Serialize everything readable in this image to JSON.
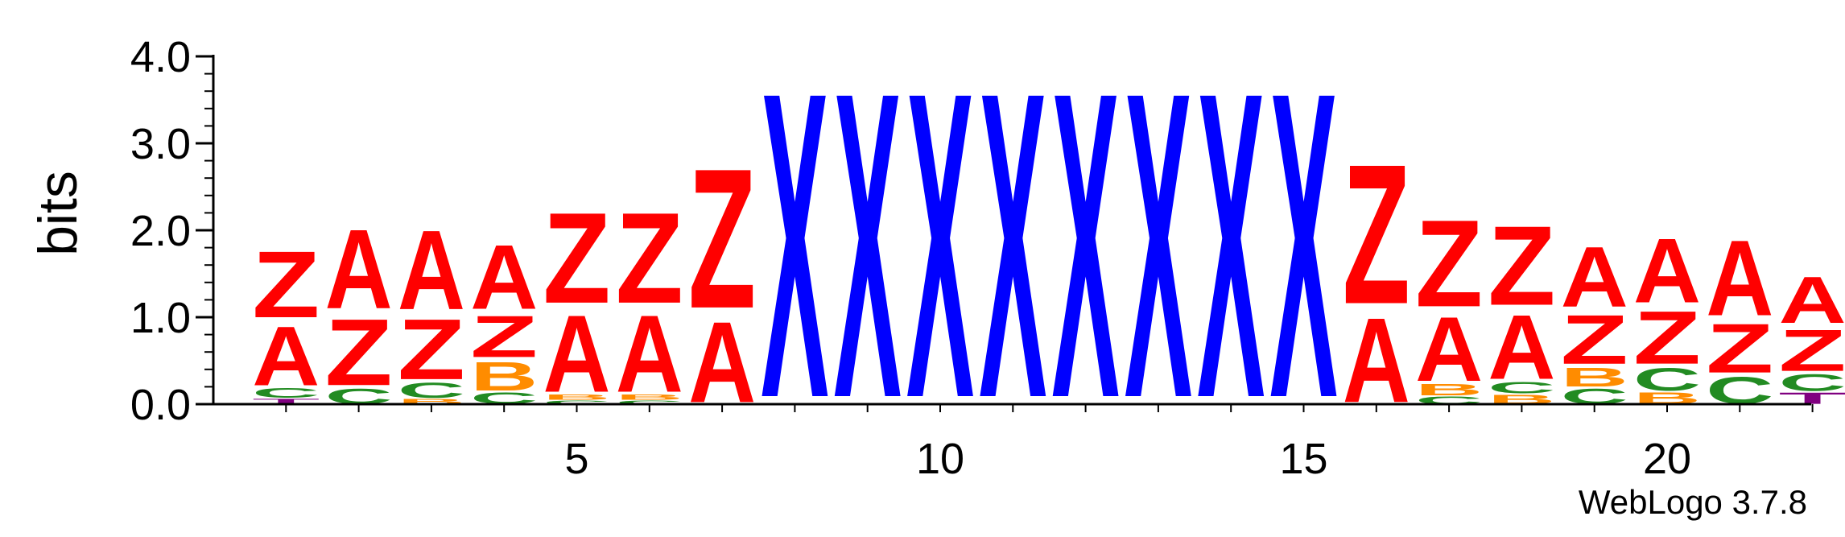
{
  "chart_data": {
    "type": "sequence-logo",
    "ylabel": "bits",
    "xlabel": "",
    "ylim": [
      0,
      4.0
    ],
    "y_ticks": [
      "0.0",
      "1.0",
      "2.0",
      "3.0",
      "4.0"
    ],
    "x_ticks": [
      5,
      10,
      15,
      20
    ],
    "credit": "WebLogo 3.7.8",
    "colors": {
      "A": "#ff0000",
      "Z": "#ff0000",
      "X": "#0000ff",
      "B": "#ff8c00",
      "C": "#228b22",
      "T": "#800080"
    },
    "positions": [
      {
        "pos": 1,
        "stack": [
          [
            "T",
            0.07
          ],
          [
            "C",
            0.13
          ],
          [
            "A",
            0.78
          ],
          [
            "Z",
            0.88
          ]
        ]
      },
      {
        "pos": 2,
        "stack": [
          [
            "C",
            0.2
          ],
          [
            "Z",
            0.88
          ],
          [
            "A",
            1.05
          ]
        ]
      },
      {
        "pos": 3,
        "stack": [
          [
            "B",
            0.07
          ],
          [
            "C",
            0.2
          ],
          [
            "Z",
            0.8
          ],
          [
            "A",
            1.05
          ]
        ]
      },
      {
        "pos": 4,
        "stack": [
          [
            "C",
            0.15
          ],
          [
            "B",
            0.38
          ],
          [
            "Z",
            0.55
          ],
          [
            "A",
            0.85
          ]
        ]
      },
      {
        "pos": 5,
        "stack": [
          [
            "C",
            0.05
          ],
          [
            "B",
            0.07
          ],
          [
            "A",
            1.02
          ],
          [
            "Z",
            1.2
          ]
        ]
      },
      {
        "pos": 6,
        "stack": [
          [
            "C",
            0.05
          ],
          [
            "B",
            0.07
          ],
          [
            "A",
            1.02
          ],
          [
            "Z",
            1.2
          ]
        ]
      },
      {
        "pos": 7,
        "stack": [
          [
            "A",
            1.07
          ],
          [
            "Z",
            1.85
          ]
        ]
      },
      {
        "pos": 8,
        "stack": [
          [
            "X",
            4.05
          ]
        ]
      },
      {
        "pos": 9,
        "stack": [
          [
            "X",
            4.05
          ]
        ]
      },
      {
        "pos": 10,
        "stack": [
          [
            "X",
            4.05
          ]
        ]
      },
      {
        "pos": 11,
        "stack": [
          [
            "X",
            4.05
          ]
        ]
      },
      {
        "pos": 12,
        "stack": [
          [
            "X",
            4.05
          ]
        ]
      },
      {
        "pos": 13,
        "stack": [
          [
            "X",
            4.05
          ]
        ]
      },
      {
        "pos": 14,
        "stack": [
          [
            "X",
            4.05
          ]
        ]
      },
      {
        "pos": 15,
        "stack": [
          [
            "X",
            4.05
          ]
        ]
      },
      {
        "pos": 16,
        "stack": [
          [
            "A",
            1.12
          ],
          [
            "Z",
            1.85
          ]
        ]
      },
      {
        "pos": 17,
        "stack": [
          [
            "C",
            0.1
          ],
          [
            "B",
            0.15
          ],
          [
            "A",
            0.85
          ],
          [
            "Z",
            1.15
          ]
        ]
      },
      {
        "pos": 18,
        "stack": [
          [
            "B",
            0.12
          ],
          [
            "C",
            0.15
          ],
          [
            "A",
            0.85
          ],
          [
            "Z",
            1.05
          ]
        ]
      },
      {
        "pos": 19,
        "stack": [
          [
            "C",
            0.2
          ],
          [
            "B",
            0.25
          ],
          [
            "Z",
            0.65
          ],
          [
            "A",
            0.8
          ]
        ]
      },
      {
        "pos": 20,
        "stack": [
          [
            "B",
            0.15
          ],
          [
            "C",
            0.3
          ],
          [
            "Z",
            0.7
          ],
          [
            "A",
            0.85
          ]
        ]
      },
      {
        "pos": 21,
        "stack": [
          [
            "C",
            0.35
          ],
          [
            "Z",
            0.65
          ],
          [
            "A",
            1.0
          ]
        ]
      },
      {
        "pos": 22,
        "stack": [
          [
            "T",
            0.15
          ],
          [
            "C",
            0.22
          ],
          [
            "Z",
            0.55
          ],
          [
            "A",
            0.62
          ]
        ]
      }
    ]
  }
}
